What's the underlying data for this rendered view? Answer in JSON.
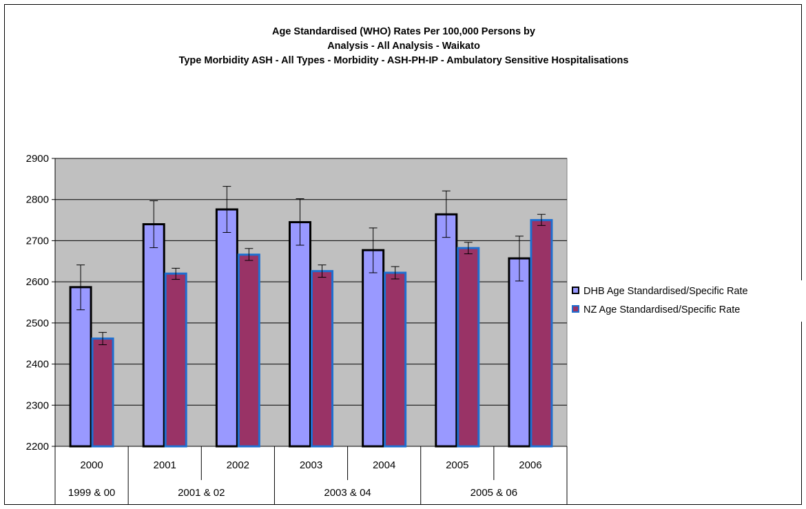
{
  "title_lines": [
    "Age Standardised (WHO) Rates Per 100,000 Persons by",
    "Analysis - All Analysis - Waikato",
    "Type Morbidity ASH - All Types - Morbidity - ASH-PH-IP - Ambulatory Sensitive Hospitalisations"
  ],
  "chart_data": {
    "type": "bar",
    "categories": [
      "2000",
      "2001",
      "2002",
      "2003",
      "2004",
      "2005",
      "2006"
    ],
    "category_groups": [
      {
        "label": "1999 & 00",
        "span": 1
      },
      {
        "label": "2001 & 02",
        "span": 2
      },
      {
        "label": "2003 & 04",
        "span": 2
      },
      {
        "label": "2005 & 06",
        "span": 2
      }
    ],
    "series": [
      {
        "name": "DHB Age Standardised/Specific Rate",
        "color": "#9999ff",
        "border": "#000000",
        "values": [
          2587,
          2740,
          2776,
          2745,
          2677,
          2764,
          2657
        ],
        "error_low": [
          2532,
          2683,
          2720,
          2689,
          2622,
          2708,
          2602
        ],
        "error_high": [
          2641,
          2797,
          2832,
          2802,
          2731,
          2821,
          2711
        ]
      },
      {
        "name": "NZ Age Standardised/Specific Rate",
        "color": "#993366",
        "border": "#1f6fd0",
        "values": [
          2462,
          2620,
          2666,
          2626,
          2622,
          2682,
          2750
        ],
        "error_low": [
          2447,
          2606,
          2652,
          2611,
          2607,
          2668,
          2737
        ],
        "error_high": [
          2477,
          2633,
          2681,
          2641,
          2637,
          2696,
          2764
        ]
      }
    ],
    "ylim": [
      2200,
      2900
    ],
    "yticks": [
      2200,
      2300,
      2400,
      2500,
      2600,
      2700,
      2800,
      2900
    ],
    "grid": true,
    "legend_position": "right",
    "plot_background": "#c0c0c0"
  }
}
